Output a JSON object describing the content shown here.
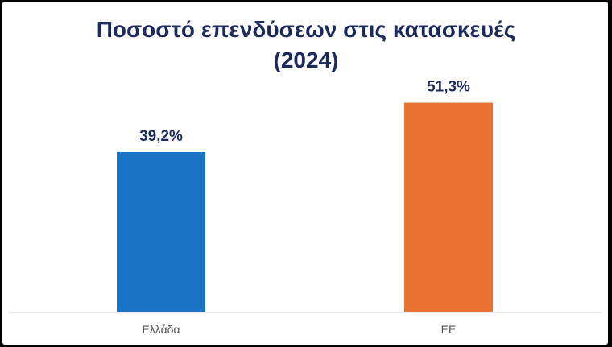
{
  "chart_data": {
    "type": "bar",
    "title": "Ποσοστό επενδύσεων στις κατασκευές",
    "subtitle": "(2024)",
    "categories": [
      "Ελλάδα",
      "ΕΕ"
    ],
    "values": [
      39.2,
      51.3
    ],
    "value_labels": [
      "39,2%",
      "51,3%"
    ],
    "colors": [
      "#1b73c6",
      "#e8722f"
    ],
    "ylim": [
      0,
      65
    ],
    "grid": false,
    "xlabel": "",
    "ylabel": ""
  },
  "colors": {
    "title": "#1b2a5c",
    "axis": "#d9d9d9",
    "category_text": "#555555"
  }
}
